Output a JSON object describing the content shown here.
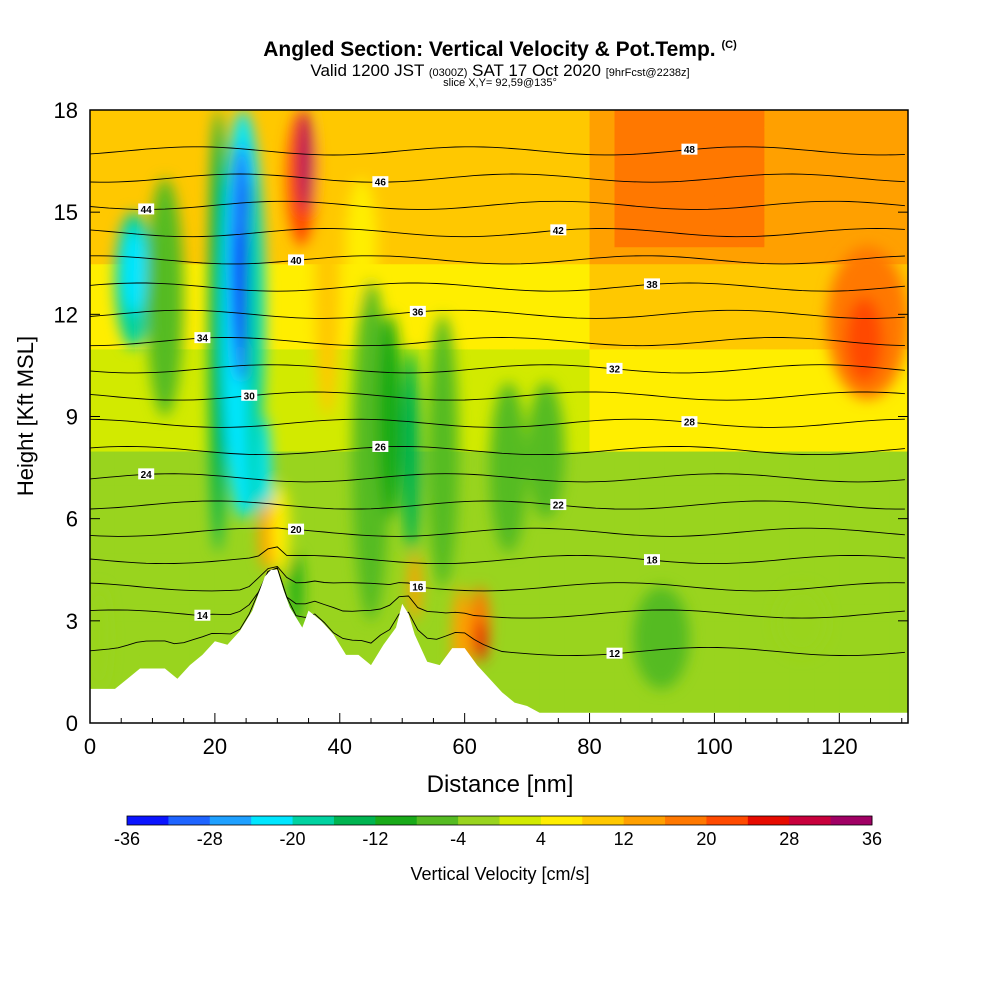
{
  "header": {
    "title": "Angled Section: Vertical Velocity & Pot.Temp.",
    "title_mark": "(C)",
    "subtitle_main_a": "Valid 1200 JST",
    "subtitle_small_a": "(0300Z)",
    "subtitle_main_b": "SAT 17 Oct 2020",
    "subtitle_small_b": "[9hrFcst@2238z]",
    "slice": "slice X,Y= 92,59@135°"
  },
  "chart_data": {
    "type": "heatmap",
    "title": "Angled Section: Vertical Velocity & Pot.Temp.",
    "xlabel": "Distance [nm]",
    "ylabel": "Height [Kft MSL]",
    "xlim": [
      0,
      131
    ],
    "ylim": [
      0,
      18
    ],
    "x_ticks": [
      0,
      20,
      40,
      60,
      80,
      100,
      120
    ],
    "y_ticks": [
      0,
      3,
      6,
      9,
      12,
      15,
      18
    ],
    "colorbar": {
      "label": "Vertical Velocity [cm/s]",
      "ticks": [
        -36,
        -28,
        -20,
        -12,
        -4,
        4,
        12,
        20,
        28,
        36
      ],
      "bounds": [
        -36,
        -32,
        -28,
        -24,
        -20,
        -16,
        -12,
        -8,
        -4,
        0,
        4,
        8,
        12,
        16,
        20,
        24,
        28,
        32,
        36
      ],
      "colors": [
        "#0a14ff",
        "#1e64ff",
        "#1ea0ff",
        "#00e6ff",
        "#00d2a0",
        "#00b450",
        "#19aa19",
        "#55bb22",
        "#99d41e",
        "#d2ea00",
        "#ffee00",
        "#ffc800",
        "#ffa000",
        "#ff7800",
        "#ff4a00",
        "#e60a00",
        "#c8003c",
        "#a00064"
      ]
    },
    "terrain": [
      [
        0,
        1.0
      ],
      [
        4,
        1.0
      ],
      [
        6,
        1.3
      ],
      [
        8,
        1.6
      ],
      [
        12,
        1.6
      ],
      [
        14,
        1.3
      ],
      [
        16,
        1.7
      ],
      [
        18,
        2.0
      ],
      [
        20,
        2.4
      ],
      [
        22,
        2.3
      ],
      [
        24,
        2.7
      ],
      [
        26,
        3.3
      ],
      [
        28,
        4.3
      ],
      [
        29,
        4.5
      ],
      [
        30,
        4.5
      ],
      [
        31,
        3.9
      ],
      [
        32,
        3.4
      ],
      [
        34,
        2.8
      ],
      [
        35,
        3.3
      ],
      [
        37,
        3.0
      ],
      [
        39,
        2.6
      ],
      [
        41,
        2.0
      ],
      [
        43,
        2.0
      ],
      [
        45,
        1.7
      ],
      [
        47,
        2.3
      ],
      [
        49,
        2.8
      ],
      [
        50,
        3.5
      ],
      [
        51,
        3.2
      ],
      [
        52,
        2.6
      ],
      [
        54,
        1.8
      ],
      [
        56,
        1.7
      ],
      [
        58,
        2.2
      ],
      [
        60,
        2.2
      ],
      [
        62,
        1.7
      ],
      [
        64,
        1.3
      ],
      [
        66,
        0.9
      ],
      [
        68,
        0.6
      ],
      [
        70,
        0.5
      ],
      [
        72,
        0.3
      ],
      [
        131,
        0.3
      ]
    ],
    "cells": [
      {
        "x": [
          0,
          3
        ],
        "y": [
          1,
          4
        ],
        "v": -4
      },
      {
        "x": [
          4,
          10
        ],
        "y": [
          11,
          15
        ],
        "v": -18
      },
      {
        "x": [
          5,
          9
        ],
        "y": [
          12,
          14.5
        ],
        "v": -24
      },
      {
        "x": [
          9,
          15
        ],
        "y": [
          9,
          16
        ],
        "v": -8
      },
      {
        "x": [
          19,
          22
        ],
        "y": [
          5,
          18
        ],
        "v": -14
      },
      {
        "x": [
          21,
          28
        ],
        "y": [
          6,
          18
        ],
        "v": -22
      },
      {
        "x": [
          22.5,
          26
        ],
        "y": [
          10,
          17
        ],
        "v": -32
      },
      {
        "x": [
          23,
          25.5
        ],
        "y": [
          11,
          14.5
        ],
        "v": -36
      },
      {
        "x": [
          25,
          27.5
        ],
        "y": [
          6,
          16
        ],
        "v": -20
      },
      {
        "x": [
          27,
          29
        ],
        "y": [
          5,
          9
        ],
        "v": -24
      },
      {
        "x": [
          27,
          30
        ],
        "y": [
          4.5,
          6.5
        ],
        "v": 14
      },
      {
        "x": [
          29,
          32
        ],
        "y": [
          4.4,
          7
        ],
        "v": 6
      },
      {
        "x": [
          32,
          34
        ],
        "y": [
          2.8,
          5
        ],
        "v": -12
      },
      {
        "x": [
          31.5,
          36.5
        ],
        "y": [
          14,
          18
        ],
        "v": 20
      },
      {
        "x": [
          33.5,
          35.5
        ],
        "y": [
          15,
          18
        ],
        "v": 34
      },
      {
        "x": [
          36,
          40
        ],
        "y": [
          9,
          18
        ],
        "v": 10
      },
      {
        "x": [
          41,
          46
        ],
        "y": [
          12,
          16
        ],
        "v": 6
      },
      {
        "x": [
          42,
          48
        ],
        "y": [
          3,
          13
        ],
        "v": -8
      },
      {
        "x": [
          46,
          50
        ],
        "y": [
          6,
          12
        ],
        "v": -10
      },
      {
        "x": [
          50,
          53
        ],
        "y": [
          5,
          11
        ],
        "v": -14
      },
      {
        "x": [
          51,
          53
        ],
        "y": [
          3,
          5
        ],
        "v": 12
      },
      {
        "x": [
          54,
          59
        ],
        "y": [
          4,
          12
        ],
        "v": -6
      },
      {
        "x": [
          58,
          61
        ],
        "y": [
          1,
          4
        ],
        "v": 14
      },
      {
        "x": [
          61,
          64
        ],
        "y": [
          1.8,
          4
        ],
        "v": 16
      },
      {
        "x": [
          61.5,
          63.5
        ],
        "y": [
          1.8,
          3
        ],
        "v": 26
      },
      {
        "x": [
          64,
          70
        ],
        "y": [
          5,
          10
        ],
        "v": -6
      },
      {
        "x": [
          70,
          76
        ],
        "y": [
          6,
          10
        ],
        "v": -8
      },
      {
        "x": [
          87,
          96
        ],
        "y": [
          1,
          4
        ],
        "v": -6
      },
      {
        "x": [
          110,
          118
        ],
        "y": [
          2,
          4
        ],
        "v": -4
      },
      {
        "x": [
          118,
          131
        ],
        "y": [
          9.5,
          14
        ],
        "v": 16
      },
      {
        "x": [
          121,
          127
        ],
        "y": [
          10,
          12.5
        ],
        "v": 22
      }
    ],
    "contours": [
      {
        "label": "12",
        "base": 2.1
      },
      {
        "label": "14",
        "base": 3.2
      },
      {
        "label": "16",
        "base": 4.0
      },
      {
        "label": "18",
        "base": 4.8
      },
      {
        "label": "20",
        "base": 5.6
      },
      {
        "label": "22",
        "base": 6.4
      },
      {
        "label": "24",
        "base": 7.2
      },
      {
        "label": "26",
        "base": 8.0
      },
      {
        "label": "28",
        "base": 8.8
      },
      {
        "label": "30",
        "base": 9.6
      },
      {
        "label": "32",
        "base": 10.4
      },
      {
        "label": "34",
        "base": 11.2
      },
      {
        "label": "36",
        "base": 12.0
      },
      {
        "label": "38",
        "base": 12.8
      },
      {
        "label": "40",
        "base": 13.6
      },
      {
        "label": "42",
        "base": 14.4
      },
      {
        "label": "44",
        "base": 15.2
      },
      {
        "label": "46",
        "base": 16.0
      },
      {
        "label": "48",
        "base": 16.8
      }
    ]
  }
}
